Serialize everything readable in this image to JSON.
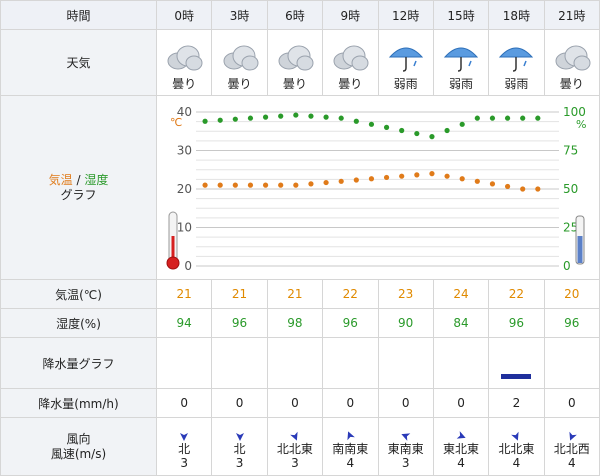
{
  "labels": {
    "time": "時間",
    "weather": "天気",
    "graph_temp": "気温",
    "graph_sep": " / ",
    "graph_hum": "湿度",
    "graph_word": "グラフ",
    "temp_row": "気温(℃)",
    "hum_row": "湿度(%)",
    "prec_graph": "降水量グラフ",
    "prec_row": "降水量(mm/h)",
    "wind_dir": "風向",
    "wind_speed": "風速(m/s)"
  },
  "times": [
    "0時",
    "3時",
    "6時",
    "9時",
    "12時",
    "15時",
    "18時",
    "21時"
  ],
  "weather": [
    {
      "text": "曇り",
      "icon": "cloud-icon"
    },
    {
      "text": "曇り",
      "icon": "cloud-icon"
    },
    {
      "text": "曇り",
      "icon": "cloud-icon"
    },
    {
      "text": "曇り",
      "icon": "cloud-icon"
    },
    {
      "text": "弱雨",
      "icon": "umbrella-rain-icon"
    },
    {
      "text": "弱雨",
      "icon": "umbrella-rain-icon"
    },
    {
      "text": "弱雨",
      "icon": "umbrella-rain-icon"
    },
    {
      "text": "曇り",
      "icon": "cloud-icon"
    }
  ],
  "temperature": [
    "21",
    "21",
    "21",
    "22",
    "23",
    "24",
    "22",
    "20"
  ],
  "humidity": [
    "94",
    "96",
    "98",
    "96",
    "90",
    "84",
    "96",
    "96"
  ],
  "precipitation": [
    "0",
    "0",
    "0",
    "0",
    "0",
    "0",
    "2",
    "0"
  ],
  "wind": [
    {
      "dir": "北",
      "speed": "3"
    },
    {
      "dir": "北",
      "speed": "3"
    },
    {
      "dir": "北北東",
      "speed": "3"
    },
    {
      "dir": "南南東",
      "speed": "4"
    },
    {
      "dir": "東南東",
      "speed": "3"
    },
    {
      "dir": "東北東",
      "speed": "4"
    },
    {
      "dir": "北北東",
      "speed": "4"
    },
    {
      "dir": "北北西",
      "speed": "4"
    }
  ],
  "chart_data": {
    "type": "line",
    "series": [
      {
        "name": "気温",
        "unit": "℃",
        "color": "#e07b1a",
        "values": [
          21,
          21,
          21,
          22,
          23,
          24,
          22,
          20
        ]
      },
      {
        "name": "湿度",
        "unit": "%",
        "color": "#2a9a2a",
        "values": [
          94,
          96,
          98,
          96,
          90,
          84,
          96,
          96
        ]
      }
    ],
    "x": [
      "0時",
      "3時",
      "6時",
      "9時",
      "12時",
      "15時",
      "18時",
      "21時"
    ],
    "y_left": {
      "ticks": [
        "40",
        "30",
        "20",
        "10",
        "0"
      ],
      "unit": "℃",
      "range": [
        0,
        40
      ]
    },
    "y_right": {
      "ticks": [
        "100",
        "75",
        "50",
        "25",
        "0"
      ],
      "unit": "%",
      "range": [
        0,
        100
      ]
    },
    "grid": true
  },
  "colors": {
    "temp": "#e07b1a",
    "humidity": "#2a9a2a",
    "precip_bar": "#1f2f9c",
    "arrow": "#2a3ab8"
  }
}
